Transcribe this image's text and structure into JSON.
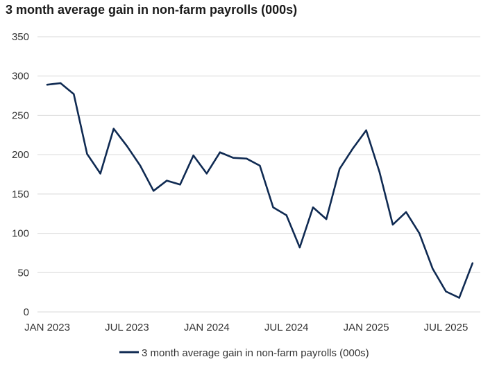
{
  "chart_data": {
    "type": "line",
    "title": "3 month average gain in non-farm payrolls (000s)",
    "xlabel": "",
    "ylabel": "",
    "ylim": [
      0,
      350
    ],
    "yticks": [
      0,
      50,
      100,
      150,
      200,
      250,
      300,
      350
    ],
    "xtick_labels": [
      "JAN 2023",
      "JUL 2023",
      "JAN 2024",
      "JUL 2024",
      "JAN 2025",
      "JUL 2025"
    ],
    "grid": true,
    "legend_position": "bottom",
    "color": "#0f2a52",
    "x": [
      "2023-01",
      "2023-02",
      "2023-03",
      "2023-04",
      "2023-05",
      "2023-06",
      "2023-07",
      "2023-08",
      "2023-09",
      "2023-10",
      "2023-11",
      "2023-12",
      "2024-01",
      "2024-02",
      "2024-03",
      "2024-04",
      "2024-05",
      "2024-06",
      "2024-07",
      "2024-08",
      "2024-09",
      "2024-10",
      "2024-11",
      "2024-12",
      "2025-01",
      "2025-02",
      "2025-03",
      "2025-04",
      "2025-05",
      "2025-06",
      "2025-07",
      "2025-08",
      "2025-09"
    ],
    "series": [
      {
        "name": "3 month average gain in non-farm payrolls (000s)",
        "values": [
          289,
          291,
          277,
          201,
          176,
          233,
          211,
          186,
          154,
          167,
          162,
          199,
          176,
          203,
          196,
          195,
          186,
          133,
          123,
          82,
          133,
          118,
          182,
          208,
          231,
          178,
          111,
          127,
          100,
          55,
          26,
          18,
          62
        ]
      }
    ]
  }
}
